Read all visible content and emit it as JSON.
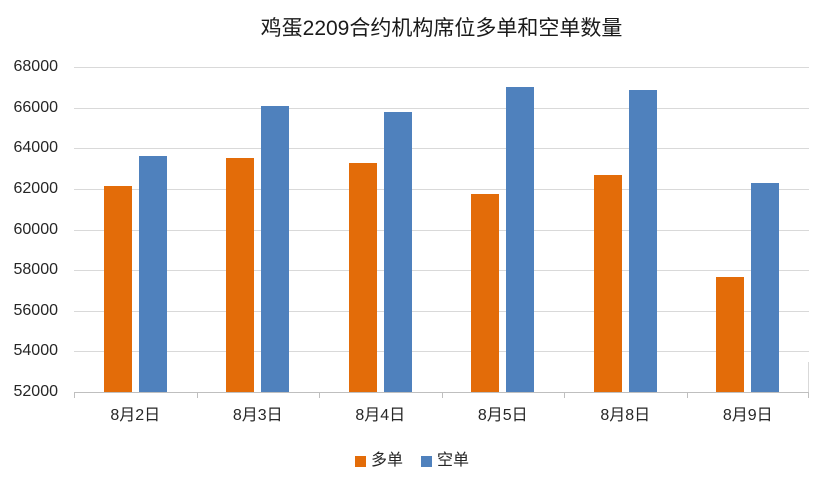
{
  "chart_data": {
    "type": "bar",
    "title": "鸡蛋2209合约机构席位多单和空单数量",
    "categories": [
      "8月2日",
      "8月3日",
      "8月4日",
      "8月5日",
      "8月8日",
      "8月9日"
    ],
    "series": [
      {
        "name": "多单",
        "color": "#E36C09",
        "values": [
          62150,
          63500,
          63250,
          61750,
          62700,
          57650
        ]
      },
      {
        "name": "空单",
        "color": "#4F81BD",
        "values": [
          63600,
          66100,
          65800,
          67000,
          66850,
          62300
        ]
      }
    ],
    "xlabel": "",
    "ylabel": "",
    "ylim": [
      52000,
      68000
    ],
    "ytick_step": 2000,
    "yticks": [
      52000,
      54000,
      56000,
      58000,
      60000,
      62000,
      64000,
      66000,
      68000
    ],
    "grid": true,
    "legend_position": "bottom",
    "colors": {
      "background": "#FFFFFF",
      "gridline": "#D9D9D9",
      "axis_line": "#BFBFBF",
      "title_text": "#1A1A1A",
      "axis_text": "#262626"
    }
  }
}
